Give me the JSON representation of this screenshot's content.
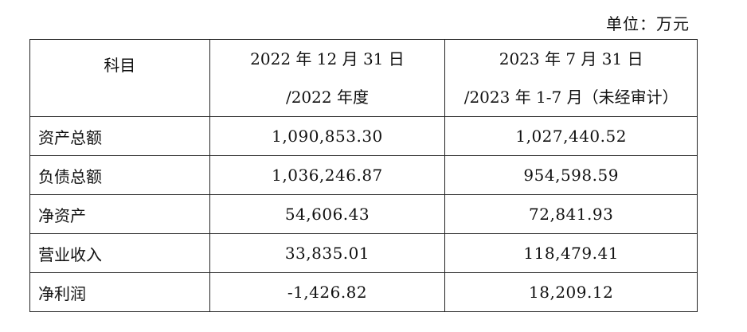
{
  "unit_label": "单位：万元",
  "header": {
    "item": "科目",
    "col1_line1": "2022 年 12 月 31 日",
    "col1_line2": "/2022 年度",
    "col2_line1": "2023 年 7 月 31 日",
    "col2_line2": "/2023 年 1-7 月（未经审计）"
  },
  "rows": [
    {
      "label": "资产总额",
      "v2022": "1,090,853.30",
      "v2023": "1,027,440.52"
    },
    {
      "label": "负债总额",
      "v2022": "1,036,246.87",
      "v2023": "954,598.59"
    },
    {
      "label": "净资产",
      "v2022": "54,606.43",
      "v2023": "72,841.93"
    },
    {
      "label": "营业收入",
      "v2022": "33,835.01",
      "v2023": "118,479.41"
    },
    {
      "label": "净利润",
      "v2022": "-1,426.82",
      "v2023": "18,209.12"
    }
  ]
}
